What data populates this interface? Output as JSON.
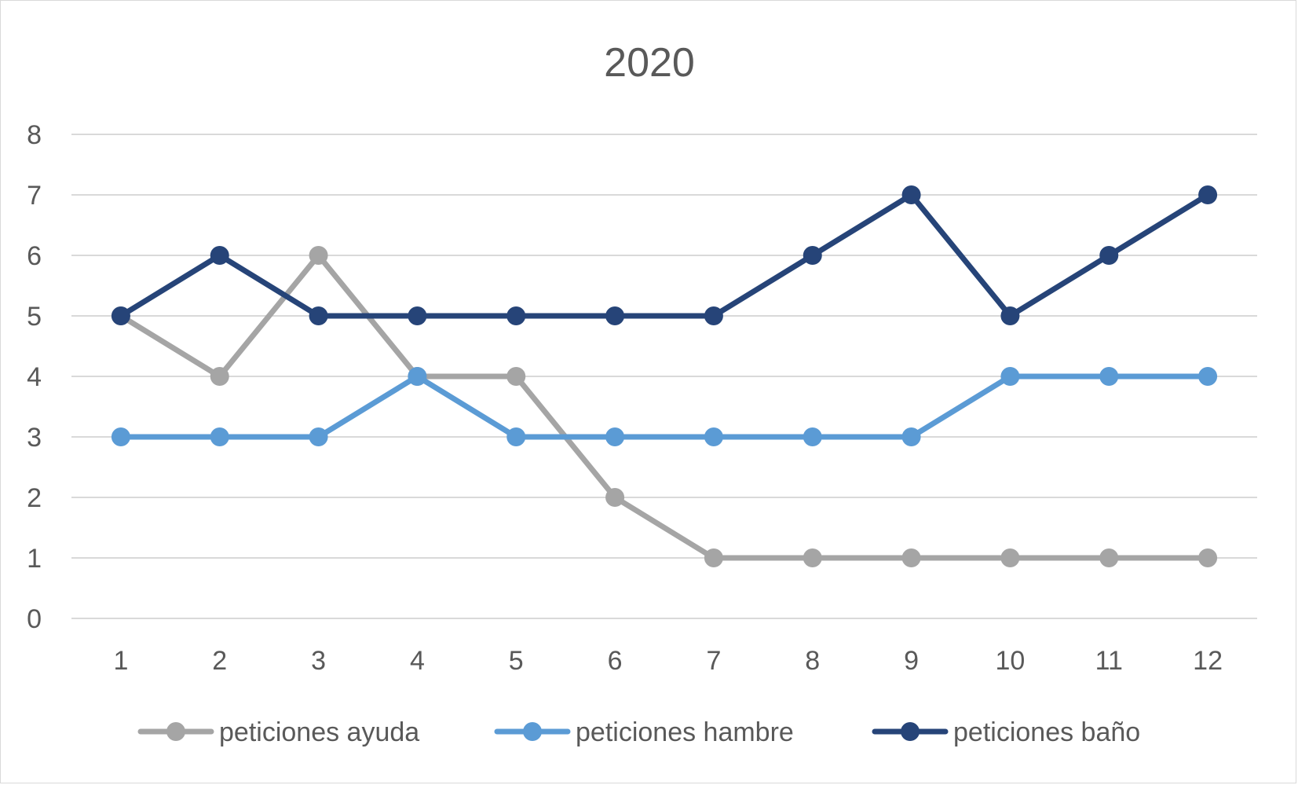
{
  "chart_data": {
    "type": "line",
    "title": "2020",
    "xlabel": "",
    "ylabel": "",
    "categories": [
      "1",
      "2",
      "3",
      "4",
      "5",
      "6",
      "7",
      "8",
      "9",
      "10",
      "11",
      "12"
    ],
    "ylim": [
      0,
      8
    ],
    "yticks": [
      0,
      1,
      2,
      3,
      4,
      5,
      6,
      7,
      8
    ],
    "grid": true,
    "legend_position": "bottom",
    "series": [
      {
        "name": "peticiones ayuda",
        "color": "#a5a5a5",
        "values": [
          5,
          4,
          6,
          4,
          4,
          2,
          1,
          1,
          1,
          1,
          1,
          1
        ]
      },
      {
        "name": "peticiones hambre",
        "color": "#5b9bd5",
        "values": [
          3,
          3,
          3,
          4,
          3,
          3,
          3,
          3,
          3,
          4,
          4,
          4
        ]
      },
      {
        "name": "peticiones baño",
        "color": "#264478",
        "values": [
          5,
          6,
          5,
          5,
          5,
          5,
          5,
          6,
          7,
          5,
          6,
          7
        ]
      }
    ]
  }
}
